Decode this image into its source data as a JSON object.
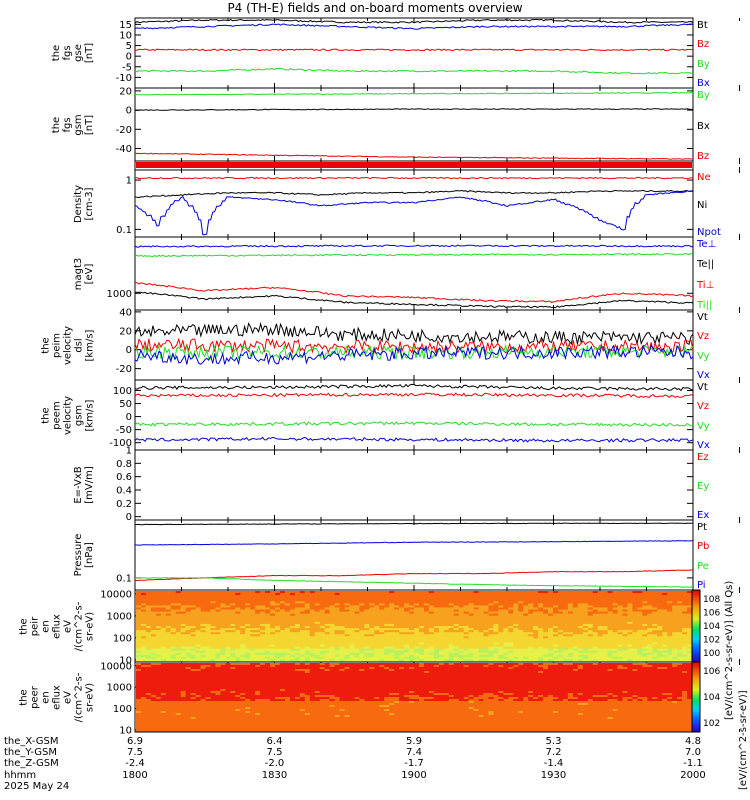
{
  "title": "P4 (TH-E) fields and on-board moments overview",
  "date_label": "2025 May 24",
  "colors": {
    "black": "#000000",
    "red": "#ee0000",
    "green": "#22dd22",
    "blue": "#0000dd"
  },
  "chart_data": [
    {
      "type": "line",
      "panel": "fgs_gse",
      "ylabel": [
        "the",
        "fgs",
        "gse",
        "[nT]"
      ],
      "ylim": [
        -15,
        18
      ],
      "yticks": [
        15,
        10,
        5,
        0,
        -5,
        -10
      ],
      "series": [
        {
          "name": "Bt",
          "color": "black",
          "x": [
            1800,
            1815,
            1830,
            1845,
            1900,
            1915,
            1930,
            1945,
            2000
          ],
          "y": [
            16,
            17,
            17,
            16,
            16,
            17,
            17,
            16,
            16
          ]
        },
        {
          "name": "Bz",
          "color": "red",
          "x": [
            1800,
            1830,
            1900,
            1930,
            2000
          ],
          "y": [
            3,
            3,
            3,
            3,
            3
          ]
        },
        {
          "name": "By",
          "color": "green",
          "x": [
            1800,
            1815,
            1830,
            1845,
            1900,
            1915,
            1930,
            1945,
            2000
          ],
          "y": [
            -7,
            -7,
            -6,
            -7,
            -7,
            -7,
            -7,
            -8,
            -8
          ]
        },
        {
          "name": "Bx",
          "color": "blue",
          "x": [
            1800,
            1815,
            1830,
            1845,
            1900,
            1915,
            1930,
            1945,
            2000
          ],
          "y": [
            13,
            14,
            15,
            14,
            13,
            14,
            14,
            14,
            15
          ]
        }
      ]
    },
    {
      "type": "line",
      "panel": "fgs_gsm",
      "ylabel": [
        "the",
        "fgs",
        "gsm",
        "[nT]"
      ],
      "ylim": [
        -53,
        23
      ],
      "yticks": [
        20,
        0,
        -20,
        -40
      ],
      "series": [
        {
          "name": "By",
          "color": "green",
          "x": [
            1800,
            1900,
            2000
          ],
          "y": [
            16,
            17,
            18
          ]
        },
        {
          "name": "Bx",
          "color": "black",
          "x": [
            1800,
            1900,
            2000
          ],
          "y": [
            0,
            1,
            1
          ]
        },
        {
          "name": "Bz",
          "color": "red",
          "x": [
            1800,
            1830,
            1900,
            1930,
            2000
          ],
          "y": [
            -45,
            -47,
            -49,
            -50,
            -51
          ]
        }
      ]
    },
    {
      "type": "line",
      "panel": "density",
      "ylabel": [
        "Density",
        "[cm-3]"
      ],
      "ylim_log": [
        0.07,
        1.6
      ],
      "yticks": [
        1,
        0.1
      ],
      "series": [
        {
          "name": "Ne",
          "color": "red",
          "x": [
            1800,
            2000
          ],
          "y": [
            1.1,
            1.1
          ]
        },
        {
          "name": "Ni",
          "color": "black",
          "x": [
            1800,
            1810,
            1820,
            1830,
            1840,
            1850,
            1900,
            1910,
            1920,
            1930,
            1940,
            1950,
            2000
          ],
          "y": [
            0.45,
            0.5,
            0.55,
            0.55,
            0.5,
            0.55,
            0.55,
            0.6,
            0.55,
            0.55,
            0.6,
            0.6,
            0.6
          ]
        },
        {
          "name": "Npot",
          "color": "blue",
          "x": [
            1800,
            1805,
            1810,
            1815,
            1820,
            1830,
            1840,
            1850,
            1900,
            1910,
            1920,
            1930,
            1940,
            1945,
            1950,
            2000
          ],
          "y": [
            0.3,
            0.12,
            0.45,
            0.08,
            0.45,
            0.4,
            0.3,
            0.35,
            0.35,
            0.45,
            0.3,
            0.4,
            0.15,
            0.1,
            0.5,
            0.6
          ]
        }
      ]
    },
    {
      "type": "line",
      "panel": "temperature",
      "ylabel": [
        "magt3",
        "[eV]"
      ],
      "ylim_log": [
        520,
        9000
      ],
      "yticks": [
        1000
      ],
      "series": [
        {
          "name": "Te⊥",
          "color": "blue",
          "x": [
            1800,
            1900,
            2000
          ],
          "y": [
            6200,
            6400,
            6300
          ]
        },
        {
          "name": "Te||",
          "color": "black",
          "x": [
            1800,
            1815,
            1830,
            1845,
            1900,
            1915,
            1930,
            1945,
            2000
          ],
          "y": [
            1050,
            800,
            900,
            700,
            650,
            600,
            580,
            750,
            680
          ]
        },
        {
          "name": "Ti⊥",
          "color": "red",
          "x": [
            1800,
            1815,
            1830,
            1845,
            1900,
            1915,
            1930,
            1945,
            2000
          ],
          "y": [
            1500,
            1100,
            1250,
            900,
            850,
            750,
            720,
            1000,
            900
          ]
        },
        {
          "name": "Ti||",
          "color": "green",
          "x": [
            1800,
            1900,
            2000
          ],
          "y": [
            4300,
            4500,
            4600
          ]
        }
      ]
    },
    {
      "type": "line",
      "panel": "peim_velocity_dsl",
      "ylabel": [
        "the",
        "peim",
        "velocity",
        "dsl",
        "[km/s]"
      ],
      "ylim": [
        -32,
        42
      ],
      "yticks": [
        40,
        20,
        0,
        -20
      ],
      "series": [
        {
          "name": "Vt",
          "color": "black",
          "x": [
            1800,
            1815,
            1830,
            1845,
            1900,
            1915,
            1930,
            1945,
            2000
          ],
          "y": [
            18,
            20,
            22,
            16,
            15,
            14,
            13,
            13,
            12
          ]
        },
        {
          "name": "Vz",
          "color": "red",
          "x": [
            1800,
            1830,
            1900,
            1930,
            2000
          ],
          "y": [
            5,
            4,
            3,
            3,
            3
          ]
        },
        {
          "name": "Vy",
          "color": "green",
          "x": [
            1800,
            1830,
            1900,
            1930,
            2000
          ],
          "y": [
            -2,
            -3,
            -3,
            -2,
            -2
          ]
        },
        {
          "name": "Vx",
          "color": "blue",
          "x": [
            1800,
            1815,
            1830,
            1845,
            1900,
            1915,
            1930,
            1945,
            2000
          ],
          "y": [
            -5,
            -10,
            -8,
            -6,
            -4,
            -3,
            -3,
            -2,
            -3
          ]
        }
      ]
    },
    {
      "type": "line",
      "panel": "peem_velocity_gsm",
      "ylabel": [
        "the",
        "peem",
        "velocity",
        "gsm",
        "[km/s]"
      ],
      "ylim": [
        -128,
        140
      ],
      "yticks": [
        100,
        50,
        0,
        -50,
        -100
      ],
      "series": [
        {
          "name": "Vt",
          "color": "black",
          "x": [
            1800,
            1830,
            1900,
            1930,
            2000
          ],
          "y": [
            110,
            112,
            118,
            108,
            105
          ]
        },
        {
          "name": "Vz",
          "color": "red",
          "x": [
            1800,
            1830,
            1900,
            1930,
            2000
          ],
          "y": [
            80,
            82,
            85,
            82,
            78
          ]
        },
        {
          "name": "Vy",
          "color": "green",
          "x": [
            1800,
            1830,
            1900,
            1930,
            2000
          ],
          "y": [
            -30,
            -28,
            -25,
            -30,
            -32
          ]
        },
        {
          "name": "Vx",
          "color": "blue",
          "x": [
            1800,
            1830,
            1900,
            1930,
            2000
          ],
          "y": [
            -90,
            -85,
            -88,
            -92,
            -90
          ]
        }
      ]
    },
    {
      "type": "line",
      "panel": "efield",
      "ylabel": [
        "E=-VxB",
        "[mV/m]"
      ],
      "ylim": [
        -0.05,
        1.0
      ],
      "yticks": [
        1.0,
        0.8,
        0.6,
        0.4,
        0.2,
        0.0
      ],
      "series": [
        {
          "name": "Ez",
          "color": "red",
          "x": [],
          "y": []
        },
        {
          "name": "Ey",
          "color": "green",
          "x": [],
          "y": []
        },
        {
          "name": "Ex",
          "color": "blue",
          "x": [],
          "y": []
        }
      ]
    },
    {
      "type": "line",
      "panel": "pressure",
      "ylabel": [
        "Pressure",
        "[nPa]"
      ],
      "ylim_log": [
        0.06,
        1.15
      ],
      "yticks": [
        0.1
      ],
      "series": [
        {
          "name": "Pt",
          "color": "black",
          "x": [
            1800,
            1830,
            1900,
            1930,
            2000
          ],
          "y": [
            0.95,
            0.97,
            0.99,
            1.0,
            1.0
          ]
        },
        {
          "name": "Pb",
          "color": "red",
          "x": [
            1800,
            1815,
            1830,
            1845,
            1900,
            1915,
            1930,
            1945,
            2000
          ],
          "y": [
            0.09,
            0.1,
            0.11,
            0.11,
            0.12,
            0.12,
            0.13,
            0.13,
            0.14
          ]
        },
        {
          "name": "Pe",
          "color": "green",
          "x": [
            1800,
            1815,
            1830,
            1845,
            1900,
            1915,
            1930,
            1945,
            2000
          ],
          "y": [
            0.1,
            0.1,
            0.09,
            0.085,
            0.08,
            0.075,
            0.072,
            0.07,
            0.068
          ]
        },
        {
          "name": "Pi",
          "color": "blue",
          "x": [
            1800,
            1830,
            1900,
            1930,
            2000
          ],
          "y": [
            0.4,
            0.42,
            0.45,
            0.46,
            0.48
          ]
        }
      ]
    },
    {
      "type": "heatmap",
      "panel": "peir_eflux",
      "ylabel": [
        "the",
        "peir",
        "en",
        "eflux",
        "eV",
        "/(cm^2-s-",
        "sr-eV)"
      ],
      "ylim_log": [
        8,
        15000
      ],
      "yticks": [
        10000,
        1000,
        100,
        10
      ]
    },
    {
      "type": "heatmap",
      "panel": "peer_eflux",
      "ylabel": [
        "the",
        "peer",
        "en",
        "eflux",
        "eV",
        "/(cm^2-s-",
        "sr-eV)"
      ],
      "ylim_log": [
        8,
        15000
      ],
      "yticks": [
        10000,
        1000,
        100,
        10
      ]
    }
  ],
  "colorbar": {
    "top_ticks": [
      "10^8",
      "10^6",
      "10^4",
      "10^2",
      "10^0"
    ],
    "bottom_ticks": [
      "10^6",
      "10^4",
      "10^2"
    ],
    "top_label": "[eV/(cm^2-s-sr-eV)] (All Qs)",
    "bottom_label": "[eV/(cm^2-s-sr-eV)]"
  },
  "x_axis": {
    "ticks": [
      1800,
      1830,
      1900,
      1930,
      2000
    ],
    "rows": [
      {
        "label": "the_X-GSM",
        "values": [
          "6.9",
          "6.4",
          "5.9",
          "5.3",
          "4.8"
        ]
      },
      {
        "label": "the_Y-GSM",
        "values": [
          "7.5",
          "7.5",
          "7.4",
          "7.2",
          "7.0"
        ]
      },
      {
        "label": "the_Z-GSM",
        "values": [
          "-2.4",
          "-2.0",
          "-1.7",
          "-1.4",
          "-1.1"
        ]
      },
      {
        "label": "hhmm",
        "values": [
          "1800",
          "1830",
          "1900",
          "1930",
          "2000"
        ]
      }
    ]
  }
}
